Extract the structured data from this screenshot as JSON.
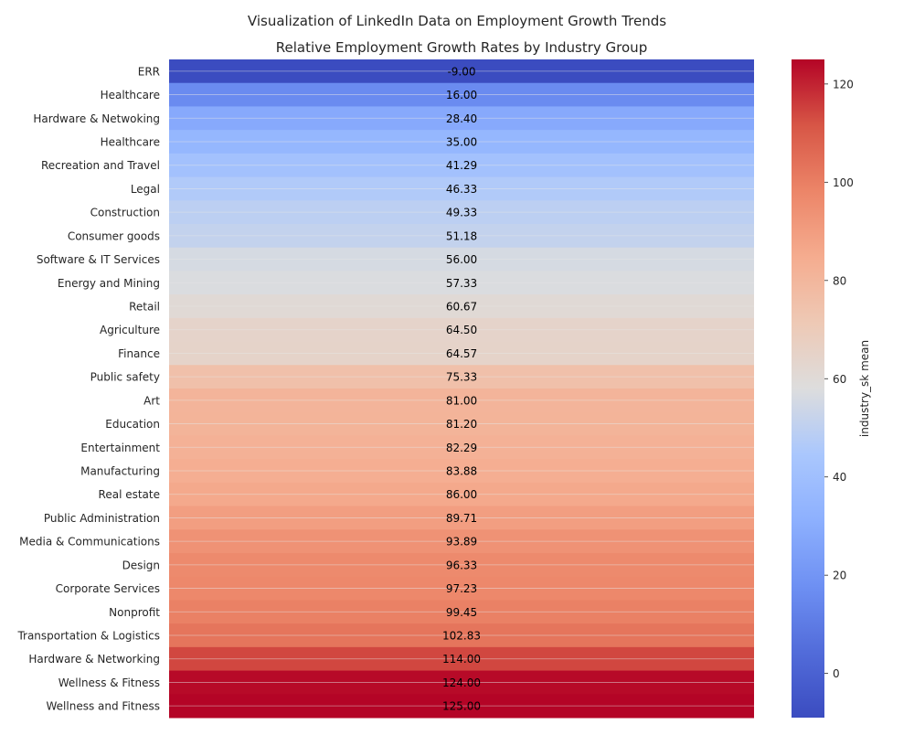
{
  "chart_data": {
    "type": "heatmap",
    "suptitle": "Visualization of LinkedIn Data on Employment Growth Trends",
    "title": "Relative Employment Growth Rates by Industry Group",
    "categories": [
      "ERR",
      "Healthcare",
      "Hardware & Netwoking",
      "Healthcare",
      "Recreation and Travel",
      "Legal",
      "Construction",
      "Consumer goods",
      "Software & IT Services",
      "Energy and Mining",
      "Retail",
      "Agriculture",
      "Finance",
      "Public safety",
      "Art",
      "Education",
      "Entertainment",
      "Manufacturing",
      "Real estate ",
      "Public Administration",
      "Media & Communications",
      "Design",
      "Corporate Services",
      "Nonprofit",
      "Transportation & Logistics",
      "Hardware & Networking",
      "Wellness & Fitness",
      "Wellness and Fitness"
    ],
    "values": [
      -9.0,
      16.0,
      28.4,
      35.0,
      41.29,
      46.33,
      49.33,
      51.18,
      56.0,
      57.33,
      60.67,
      64.5,
      64.57,
      75.33,
      81.0,
      81.2,
      82.29,
      83.88,
      86.0,
      89.71,
      93.89,
      96.33,
      97.23,
      99.45,
      102.83,
      114.0,
      124.0,
      125.0
    ],
    "value_labels": [
      "-9.00",
      "16.00",
      "28.40",
      "35.00",
      "41.29",
      "46.33",
      "49.33",
      "51.18",
      "56.00",
      "57.33",
      "60.67",
      "64.50",
      "64.57",
      "75.33",
      "81.00",
      "81.20",
      "82.29",
      "83.88",
      "86.00",
      "89.71",
      "93.89",
      "96.33",
      "97.23",
      "99.45",
      "102.83",
      "114.00",
      "124.00",
      "125.00"
    ],
    "colorbar": {
      "label": "industry_sk mean",
      "range": [
        -9.0,
        125.0
      ],
      "ticks": [
        0,
        20,
        40,
        60,
        80,
        100,
        120
      ],
      "colormap": "coolwarm"
    },
    "grid": true
  }
}
